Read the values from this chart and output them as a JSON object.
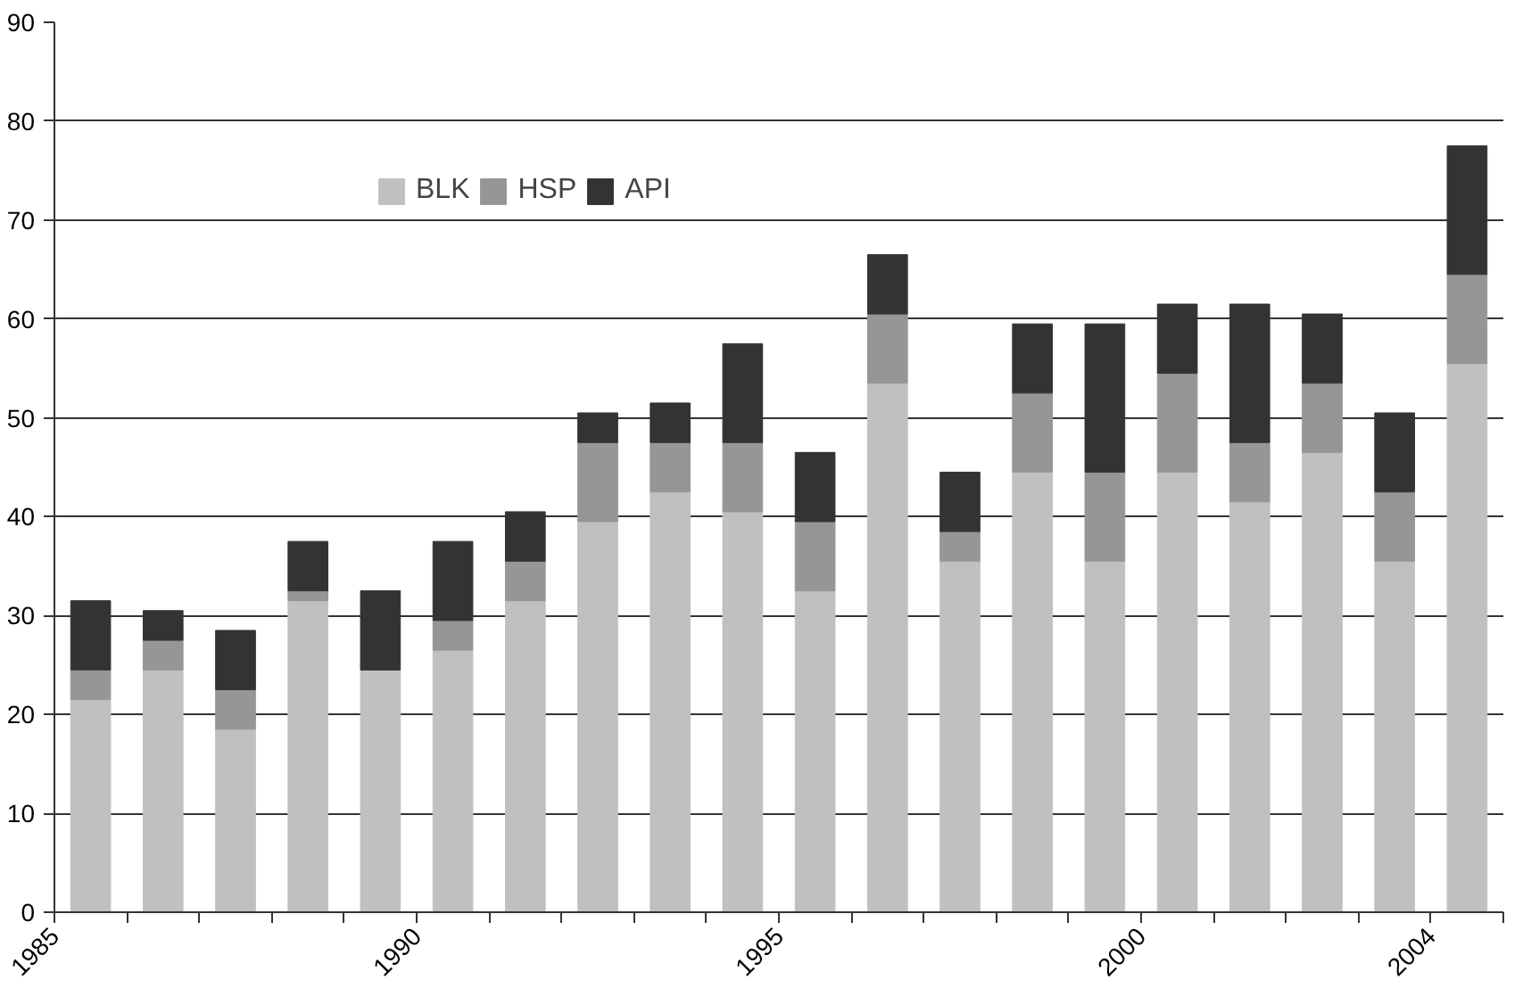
{
  "chart_data": {
    "type": "bar",
    "stacked": true,
    "x": [
      1985.5,
      1986.5,
      1987.5,
      1988.5,
      1989.5,
      1990.5,
      1991.5,
      1992.5,
      1993.5,
      1994.5,
      1995.5,
      1996.5,
      1997.5,
      1998.5,
      1999.5,
      2000.5,
      2001.5,
      2002.5,
      2003.5,
      2004.5
    ],
    "series": [
      {
        "name": "BLK",
        "color": "#c0c0c0",
        "values": [
          21.5,
          24.5,
          18.5,
          31.5,
          24.5,
          26.5,
          31.5,
          39.5,
          42.5,
          40.5,
          32.5,
          53.5,
          35.5,
          44.5,
          35.5,
          44.5,
          41.5,
          46.5,
          35.5,
          55.5
        ]
      },
      {
        "name": "HSP",
        "color": "#969696",
        "values": [
          3,
          3,
          4,
          1,
          0,
          3,
          4,
          8,
          5,
          7,
          7,
          7,
          3,
          8,
          9,
          10,
          6,
          7,
          7,
          9
        ]
      },
      {
        "name": "API",
        "color": "#333333",
        "values": [
          7,
          3,
          6,
          5,
          8,
          8,
          5,
          3,
          4,
          10,
          7,
          6,
          6,
          7,
          15,
          7,
          14,
          7,
          8,
          13
        ]
      }
    ],
    "xlim": [
      1985,
      2005
    ],
    "xticks": [
      1985,
      {
        "value": 1986,
        "label": null
      },
      {
        "value": 1987,
        "label": null
      },
      {
        "value": 1988,
        "label": null
      },
      {
        "value": 1989,
        "label": null
      },
      1990,
      {
        "value": 1991,
        "label": null
      },
      {
        "value": 1992,
        "label": null
      },
      {
        "value": 1993,
        "label": null
      },
      {
        "value": 1994,
        "label": null
      },
      1995,
      {
        "value": 1996,
        "label": null
      },
      {
        "value": 1997,
        "label": null
      },
      {
        "value": 1998,
        "label": null
      },
      {
        "value": 1999,
        "label": null
      },
      2000,
      {
        "value": 2001,
        "label": null
      },
      {
        "value": 2002,
        "label": null
      },
      {
        "value": 2003,
        "label": null
      },
      2004,
      {
        "value": 2005,
        "label": null
      }
    ],
    "ylim": [
      0,
      90
    ],
    "yticks": [
      0,
      10,
      20,
      30,
      40,
      50,
      60,
      70,
      80,
      90
    ],
    "grid": "y",
    "legend": "top"
  }
}
